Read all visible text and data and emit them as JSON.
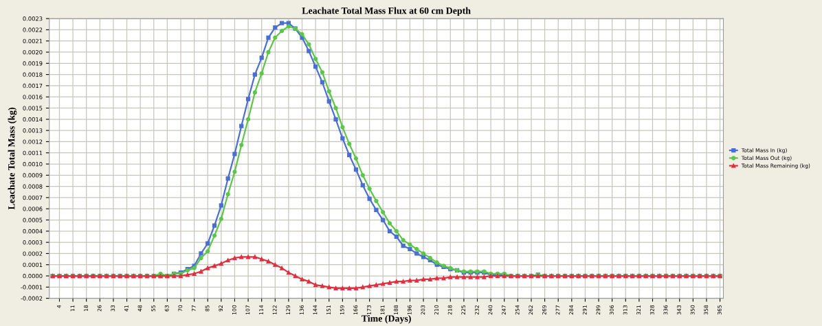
{
  "chart_data": {
    "type": "line",
    "title": "Leachate Total Mass Flux at 60 cm Depth",
    "xlabel": "Time (Days)",
    "ylabel": "Leachate Total Mass (kg)",
    "categories": [
      null,
      "4",
      null,
      "11",
      null,
      "18",
      null,
      "26",
      null,
      "33",
      null,
      "41",
      null,
      "48",
      null,
      "55",
      null,
      "63",
      null,
      "70",
      null,
      "77",
      null,
      "85",
      null,
      "92",
      null,
      "100",
      null,
      "107",
      null,
      "114",
      null,
      "122",
      null,
      "129",
      null,
      "136",
      null,
      "144",
      null,
      "151",
      null,
      "159",
      null,
      "166",
      null,
      "173",
      null,
      "181",
      null,
      "188",
      null,
      "196",
      null,
      "203",
      null,
      "210",
      null,
      "218",
      null,
      "225",
      null,
      "232",
      null,
      "240",
      null,
      "247",
      null,
      "254",
      null,
      "262",
      null,
      "269",
      null,
      "277",
      null,
      "284",
      null,
      "291",
      null,
      "299",
      null,
      "306",
      null,
      "313",
      null,
      "321",
      null,
      "328",
      null,
      "336",
      null,
      "343",
      null,
      "350",
      null,
      "358",
      null,
      "365"
    ],
    "series": [
      {
        "name": "Total Mass In (kg)",
        "color": "#4a6fd1",
        "marker": "square",
        "values": [
          0,
          0,
          0,
          0,
          0,
          0,
          0,
          0,
          0,
          0,
          0,
          0,
          0,
          0,
          0,
          0,
          0,
          0,
          2e-05,
          3e-05,
          6e-05,
          9e-05,
          0.0002,
          0.00029,
          0.00045,
          0.00063,
          0.00087,
          0.00109,
          0.00134,
          0.00158,
          0.0018,
          0.00195,
          0.00213,
          0.00222,
          0.00226,
          0.00226,
          0.00221,
          0.00213,
          0.00201,
          0.00187,
          0.00173,
          0.00156,
          0.0014,
          0.00123,
          0.00108,
          0.00095,
          0.00081,
          0.00069,
          0.00059,
          0.0005,
          0.0004,
          0.00035,
          0.00027,
          0.00024,
          0.0002,
          0.00017,
          0.00014,
          0.0001,
          8e-05,
          6e-05,
          5e-05,
          3e-05,
          3e-05,
          3e-05,
          3e-05,
          1e-05,
          1e-05,
          1e-05,
          0,
          0,
          0,
          0,
          1e-05,
          0,
          0,
          0,
          0,
          0,
          0,
          0,
          0,
          0,
          0,
          0,
          0,
          0,
          0,
          0,
          0,
          0,
          0,
          0,
          0,
          0,
          0,
          0,
          0,
          0,
          0,
          0
        ]
      },
      {
        "name": "Total Mass Out (kg)",
        "color": "#5cc64a",
        "marker": "circle",
        "values": [
          0,
          0,
          0,
          0,
          0,
          0,
          0,
          0,
          0,
          0,
          0,
          0,
          0,
          0,
          0,
          0,
          2e-05,
          0,
          2e-05,
          2e-05,
          5e-05,
          7e-05,
          0.00016,
          0.00022,
          0.00036,
          0.00051,
          0.00073,
          0.00093,
          0.00117,
          0.0014,
          0.00164,
          0.00181,
          0.002,
          0.00213,
          0.00219,
          0.00223,
          0.00221,
          0.00216,
          0.00207,
          0.00194,
          0.00182,
          0.00165,
          0.0015,
          0.00133,
          0.00118,
          0.00105,
          0.0009,
          0.00078,
          0.00067,
          0.00057,
          0.00047,
          0.0004,
          0.00032,
          0.00028,
          0.00024,
          0.0002,
          0.00016,
          0.00012,
          9e-05,
          7e-05,
          5e-05,
          4e-05,
          4e-05,
          4e-05,
          4e-05,
          2e-05,
          2e-05,
          2e-05,
          0,
          0,
          0,
          0,
          1e-05,
          0,
          0,
          0,
          0,
          0,
          0,
          0,
          0,
          0,
          0,
          0,
          0,
          0,
          0,
          0,
          0,
          0,
          0,
          0,
          0,
          0,
          0,
          0,
          0,
          0,
          0,
          0
        ]
      },
      {
        "name": "Total Mass Remaining (kg)",
        "color": "#e0303f",
        "marker": "triangle",
        "values": [
          0,
          0,
          0,
          0,
          0,
          0,
          0,
          0,
          0,
          0,
          0,
          0,
          0,
          0,
          0,
          0,
          0,
          0,
          0,
          0,
          1e-05,
          2e-05,
          4e-05,
          7e-05,
          9e-05,
          0.00011,
          0.00014,
          0.00016,
          0.00017,
          0.00017,
          0.00017,
          0.00015,
          0.00013,
          0.0001,
          7e-05,
          3e-05,
          0,
          -3e-05,
          -5e-05,
          -8e-05,
          -9e-05,
          -0.0001,
          -0.00011,
          -0.00011,
          -0.00011,
          -0.00011,
          -0.0001,
          -9e-05,
          -8e-05,
          -7e-05,
          -6e-05,
          -5e-05,
          -5e-05,
          -4e-05,
          -4e-05,
          -3e-05,
          -3e-05,
          -2e-05,
          -2e-05,
          -1e-05,
          -1e-05,
          -1e-05,
          -1e-05,
          -1e-05,
          -1e-05,
          0,
          0,
          0,
          0,
          0,
          0,
          0,
          0,
          0,
          0,
          0,
          0,
          0,
          0,
          0,
          0,
          0,
          0,
          0,
          0,
          0,
          0,
          0,
          0,
          0,
          0,
          0,
          0,
          0,
          0,
          0,
          0,
          0,
          0,
          0
        ]
      }
    ],
    "ylim": [
      -0.0002,
      0.0023
    ],
    "yticks": [
      {
        "value": -0.0002,
        "label": "-0.0002"
      },
      {
        "value": -0.0001,
        "label": "-0.0001"
      },
      {
        "value": 0,
        "label": "0.0000"
      },
      {
        "value": 0.0001,
        "label": "0.0001"
      },
      {
        "value": 0.0002,
        "label": "0.0002"
      },
      {
        "value": 0.0003,
        "label": "0.0003"
      },
      {
        "value": 0.0004,
        "label": "0.0004"
      },
      {
        "value": 0.0005,
        "label": "0.0005"
      },
      {
        "value": 0.0006,
        "label": "0.0006"
      },
      {
        "value": 0.0007,
        "label": "0.0007"
      },
      {
        "value": 0.0008,
        "label": "0.0008"
      },
      {
        "value": 0.0009,
        "label": "0.0009"
      },
      {
        "value": 0.001,
        "label": "0.0010"
      },
      {
        "value": 0.0011,
        "label": "0.0011"
      },
      {
        "value": 0.0012,
        "label": "0.0012"
      },
      {
        "value": 0.0013,
        "label": "0.0013"
      },
      {
        "value": 0.0014,
        "label": "0.0014"
      },
      {
        "value": 0.0015,
        "label": "0.0015"
      },
      {
        "value": 0.0016,
        "label": "0.0016"
      },
      {
        "value": 0.0017,
        "label": "0.0017"
      },
      {
        "value": 0.0018,
        "label": "0.0018"
      },
      {
        "value": 0.0019,
        "label": "0.0019"
      },
      {
        "value": 0.002,
        "label": "0.0020"
      },
      {
        "value": 0.0021,
        "label": "0.0021"
      },
      {
        "value": 0.0022,
        "label": "0.0022"
      },
      {
        "value": 0.0023,
        "label": "0.0023"
      }
    ],
    "grid": true,
    "legend": "right",
    "line_style": "solid"
  }
}
